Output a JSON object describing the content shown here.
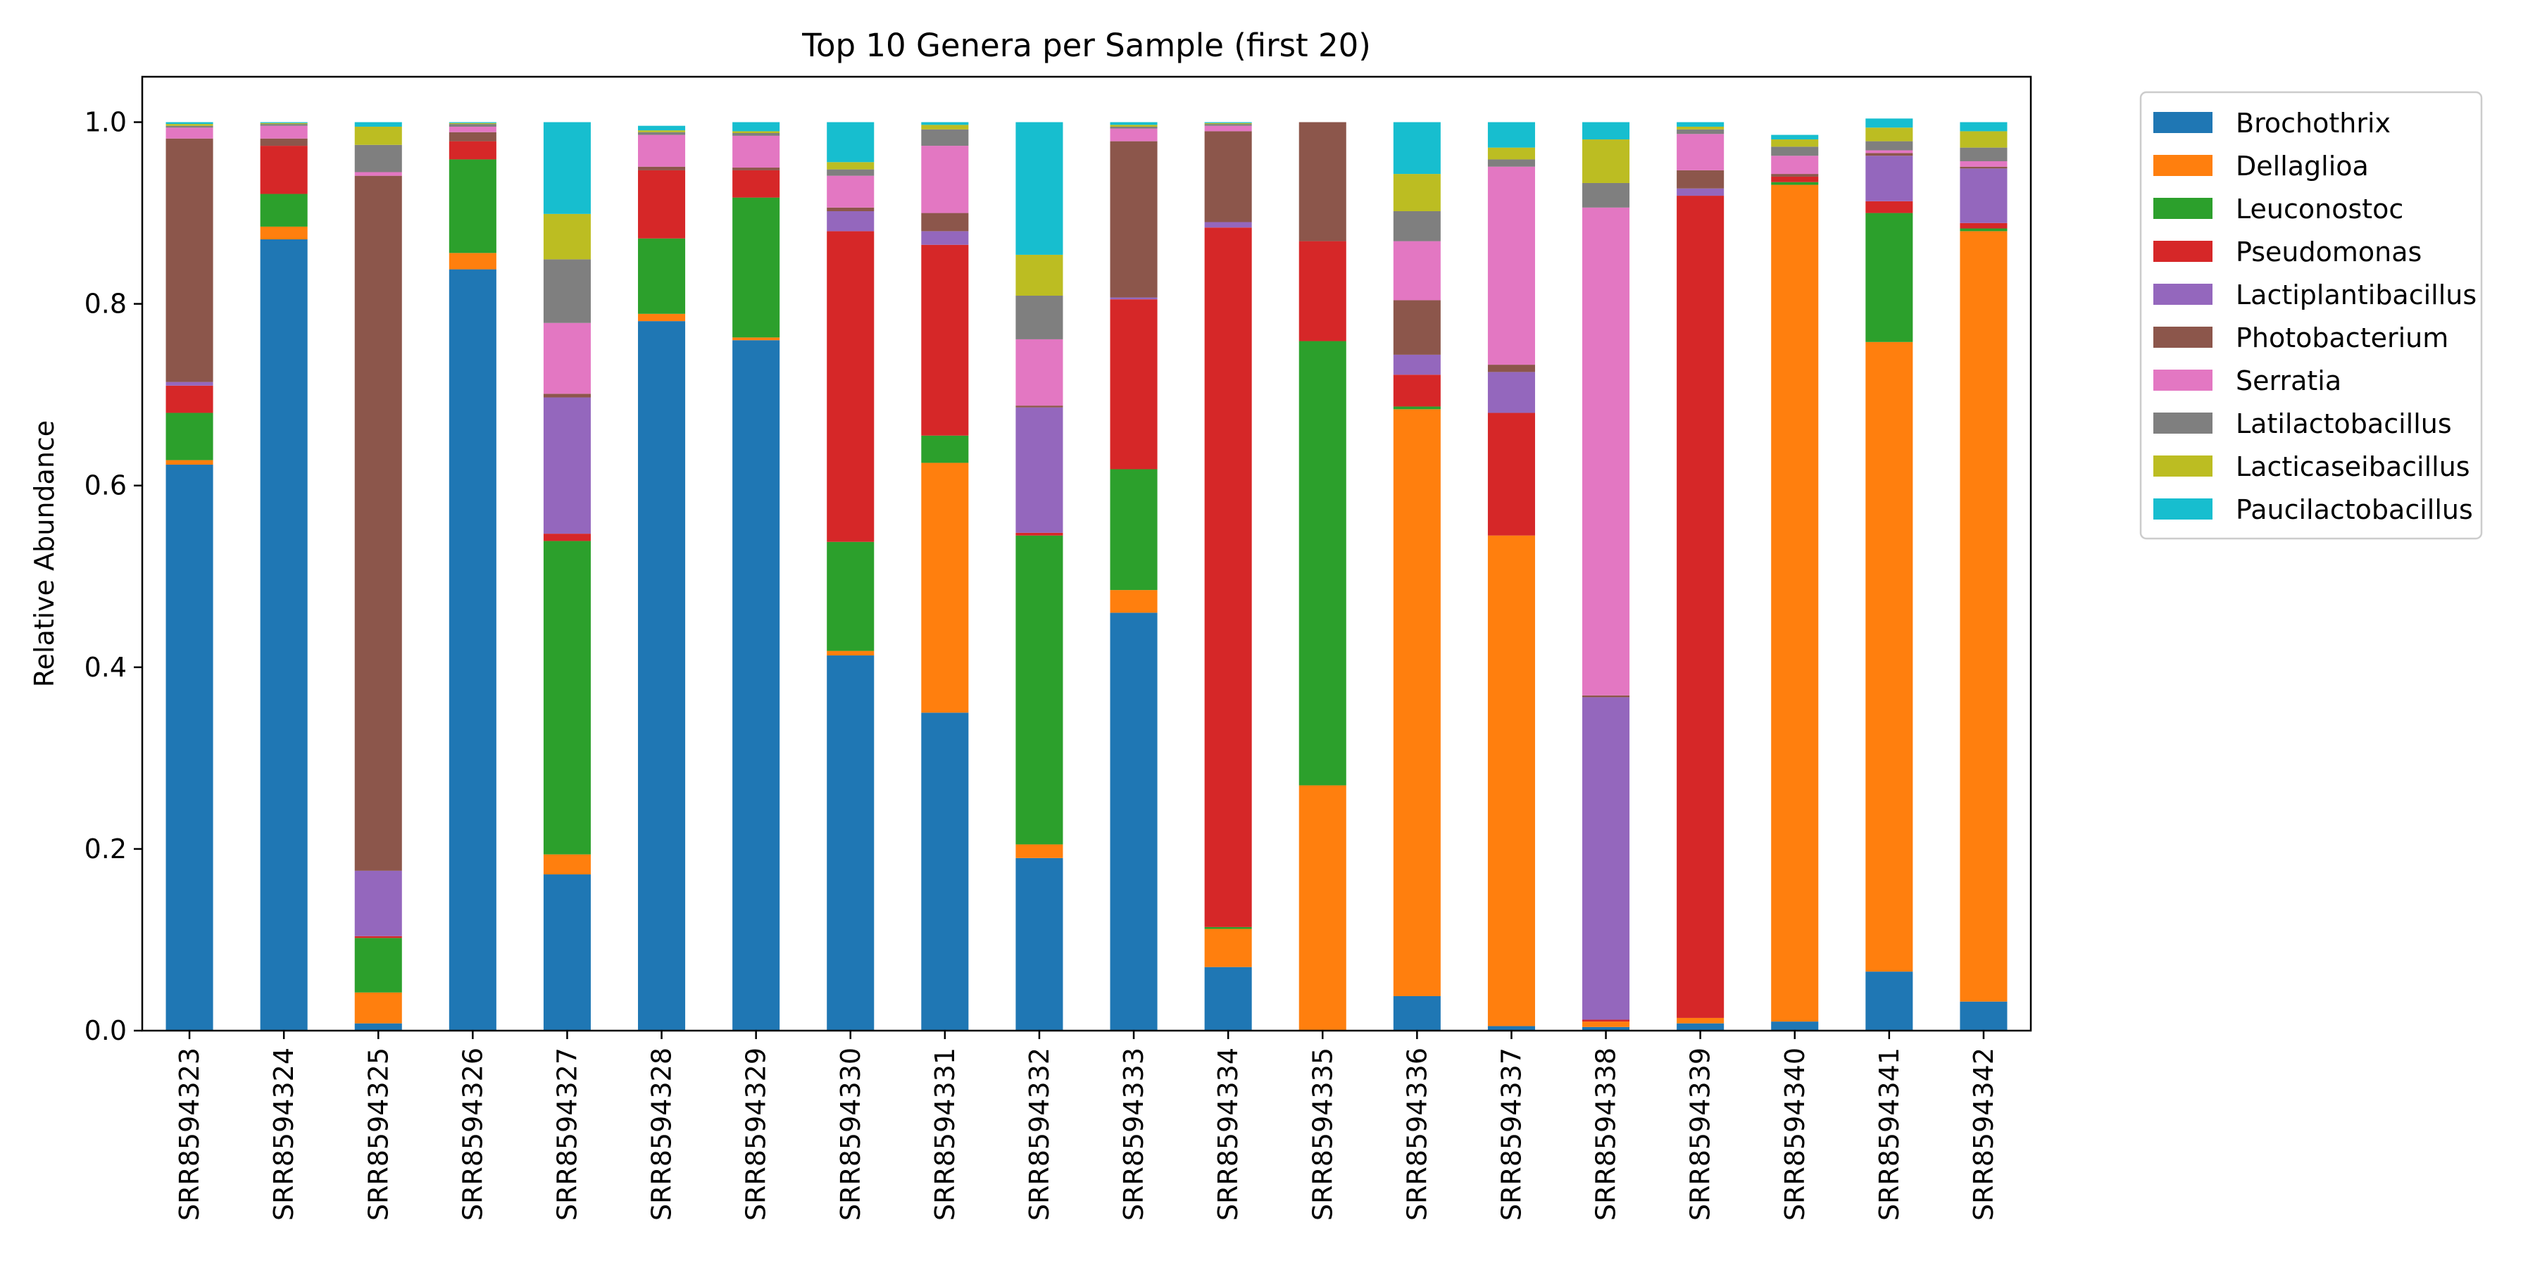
{
  "chart_data": {
    "type": "bar",
    "stacked": true,
    "title": "Top 10 Genera per Sample (first 20)",
    "xlabel": "",
    "ylabel": "Relative Abundance",
    "ylim": [
      0,
      1.05
    ],
    "yticks": [
      "0.0",
      "0.2",
      "0.4",
      "0.6",
      "0.8",
      "1.0"
    ],
    "grid": false,
    "legend_position": "outside-right-top",
    "categories": [
      "SRR8594323",
      "SRR8594324",
      "SRR8594325",
      "SRR8594326",
      "SRR8594327",
      "SRR8594328",
      "SRR8594329",
      "SRR8594330",
      "SRR8594331",
      "SRR8594332",
      "SRR8594333",
      "SRR8594334",
      "SRR8594335",
      "SRR8594336",
      "SRR8594337",
      "SRR8594338",
      "SRR8594339",
      "SRR8594340",
      "SRR8594341",
      "SRR8594342"
    ],
    "series": [
      {
        "name": "Brochothrix",
        "color": "#1f77b4",
        "values": [
          0.623,
          0.871,
          0.008,
          0.838,
          0.172,
          0.781,
          0.76,
          0.413,
          0.35,
          0.19,
          0.46,
          0.07,
          0.0,
          0.038,
          0.005,
          0.004,
          0.008,
          0.01,
          0.065,
          0.032
        ]
      },
      {
        "name": "Dellaglioa",
        "color": "#ff7f0e",
        "values": [
          0.005,
          0.014,
          0.034,
          0.018,
          0.022,
          0.008,
          0.003,
          0.005,
          0.275,
          0.015,
          0.025,
          0.042,
          0.27,
          0.646,
          0.54,
          0.006,
          0.006,
          0.921,
          0.693,
          0.848
        ]
      },
      {
        "name": "Leuconostoc",
        "color": "#2ca02c",
        "values": [
          0.052,
          0.036,
          0.06,
          0.103,
          0.345,
          0.083,
          0.154,
          0.12,
          0.03,
          0.34,
          0.133,
          0.002,
          0.489,
          0.003,
          0.0,
          0.0,
          0.0,
          0.003,
          0.142,
          0.003
        ]
      },
      {
        "name": "Pseudomonas",
        "color": "#d62728",
        "values": [
          0.03,
          0.053,
          0.002,
          0.02,
          0.008,
          0.075,
          0.03,
          0.342,
          0.21,
          0.003,
          0.187,
          0.77,
          0.11,
          0.035,
          0.135,
          0.002,
          0.905,
          0.006,
          0.013,
          0.006
        ]
      },
      {
        "name": "Lactiplantibacillus",
        "color": "#9467bd",
        "values": [
          0.004,
          0.0,
          0.072,
          0.0,
          0.15,
          0.0,
          0.0,
          0.022,
          0.015,
          0.138,
          0.002,
          0.006,
          0.0,
          0.022,
          0.045,
          0.355,
          0.008,
          0.0,
          0.05,
          0.06
        ]
      },
      {
        "name": "Photobacterium",
        "color": "#8c564b",
        "values": [
          0.268,
          0.008,
          0.765,
          0.01,
          0.004,
          0.004,
          0.003,
          0.004,
          0.02,
          0.002,
          0.172,
          0.1,
          0.131,
          0.06,
          0.008,
          0.002,
          0.02,
          0.003,
          0.003,
          0.002
        ]
      },
      {
        "name": "Serratia",
        "color": "#e377c2",
        "values": [
          0.012,
          0.014,
          0.004,
          0.006,
          0.078,
          0.035,
          0.035,
          0.035,
          0.074,
          0.073,
          0.014,
          0.006,
          0.0,
          0.065,
          0.218,
          0.537,
          0.04,
          0.02,
          0.003,
          0.006
        ]
      },
      {
        "name": "Latilactobacillus",
        "color": "#7f7f7f",
        "values": [
          0.002,
          0.002,
          0.03,
          0.003,
          0.07,
          0.003,
          0.003,
          0.007,
          0.018,
          0.048,
          0.002,
          0.002,
          0.0,
          0.033,
          0.008,
          0.027,
          0.005,
          0.01,
          0.01,
          0.015
        ]
      },
      {
        "name": "Lacticaseibacillus",
        "color": "#bcbd22",
        "values": [
          0.002,
          0.001,
          0.02,
          0.001,
          0.05,
          0.002,
          0.002,
          0.008,
          0.005,
          0.045,
          0.002,
          0.001,
          0.0,
          0.041,
          0.013,
          0.048,
          0.003,
          0.008,
          0.015,
          0.018
        ]
      },
      {
        "name": "Paucilactobacillus",
        "color": "#17becf",
        "values": [
          0.002,
          0.001,
          0.005,
          0.001,
          0.101,
          0.005,
          0.01,
          0.044,
          0.003,
          0.146,
          0.003,
          0.001,
          0.0,
          0.057,
          0.028,
          0.019,
          0.005,
          0.005,
          0.01,
          0.01
        ]
      }
    ]
  }
}
